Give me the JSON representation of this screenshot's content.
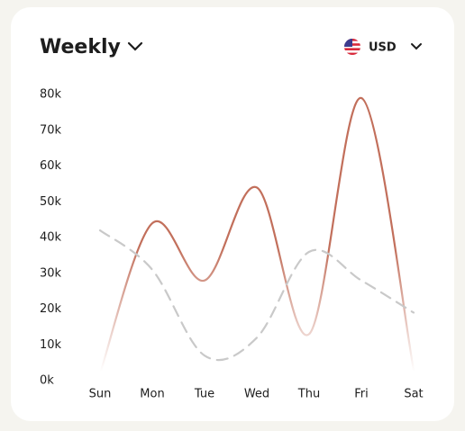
{
  "header": {
    "currency": "USD"
  },
  "chart_data": {
    "type": "line",
    "title": "Weekly",
    "categories": [
      "Sun",
      "Mon",
      "Tue",
      "Wed",
      "Thu",
      "Fri",
      "Sat"
    ],
    "series": [
      {
        "color": "#c26f5b",
        "dashed": false,
        "values": [
          2000,
          44000,
          28000,
          54000,
          13000,
          79000,
          3000
        ]
      },
      {
        "color": "#c9c9c9",
        "dashed": true,
        "values": [
          42000,
          31000,
          7000,
          12000,
          36000,
          28000,
          19000
        ]
      }
    ],
    "ylim": [
      0,
      80000
    ],
    "yticks": [
      {
        "value": 0,
        "label": "0k"
      },
      {
        "value": 10000,
        "label": "10k"
      },
      {
        "value": 20000,
        "label": "20k"
      },
      {
        "value": 30000,
        "label": "30k"
      },
      {
        "value": 40000,
        "label": "40k"
      },
      {
        "value": 50000,
        "label": "50k"
      },
      {
        "value": 60000,
        "label": "60k"
      },
      {
        "value": 70000,
        "label": "70k"
      },
      {
        "value": 80000,
        "label": "80k"
      }
    ],
    "grid": false
  }
}
